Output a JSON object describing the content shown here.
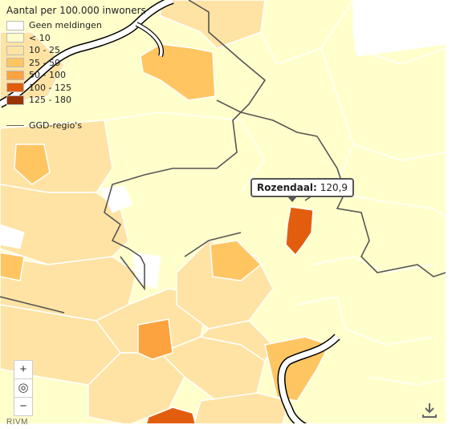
{
  "legend": {
    "title": "Aantal per 100.000 inwoners",
    "classes": [
      {
        "label": "Geen meldingen",
        "color": "#ffffff"
      },
      {
        "label": "< 10",
        "color": "#ffffcc"
      },
      {
        "label": "10 - 25",
        "color": "#fee3a4"
      },
      {
        "label": "25 - 50",
        "color": "#fec561"
      },
      {
        "label": "50 - 100",
        "color": "#fca23e"
      },
      {
        "label": "100 - 125",
        "color": "#e35d0e"
      },
      {
        "label": "125 - 180",
        "color": "#993404"
      }
    ],
    "region_line_label": "GGD-regio's"
  },
  "tooltip": {
    "name": "Rozendaal:",
    "value": "120,9"
  },
  "zoom": {
    "in_label": "+",
    "reset_label": "◎",
    "out_label": "−"
  },
  "footer": {
    "source": "RIVM"
  },
  "colors": {
    "river": "#ffffff",
    "region_border": "#555555",
    "municipality_border": "#ffffff"
  }
}
